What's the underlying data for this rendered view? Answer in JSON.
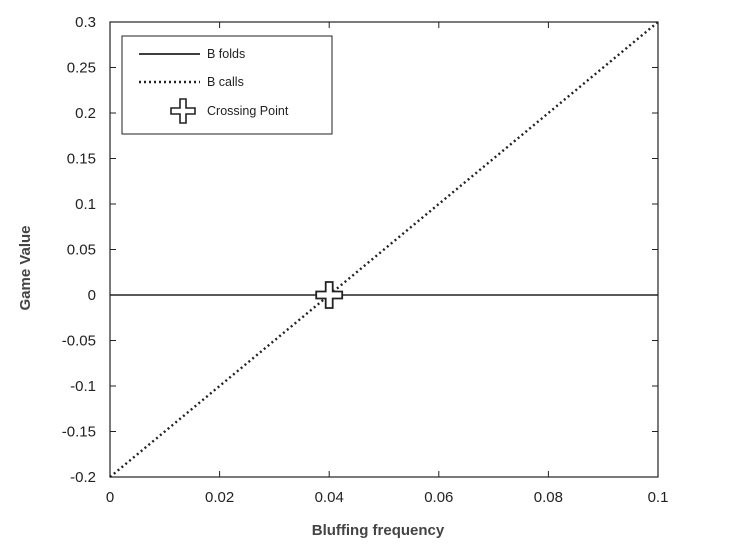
{
  "chart_data": {
    "type": "line",
    "title": "",
    "xlabel": "Bluffing frequency",
    "ylabel": "Game Value",
    "xlim": [
      0,
      0.1
    ],
    "ylim": [
      -0.2,
      0.3
    ],
    "x_ticks": [
      "0",
      "0.02",
      "0.04",
      "0.06",
      "0.08",
      "0.1"
    ],
    "y_ticks": [
      "0.3",
      "0.25",
      "0.2",
      "0.15",
      "0.1",
      "0.05",
      "0",
      "-0.05",
      "-0.1",
      "-0.15",
      "-0.2"
    ],
    "grid": false,
    "legend_position": "top-left",
    "series": [
      {
        "name": "B folds",
        "style": "solid",
        "color": "#222222",
        "x": [
          0,
          0.1
        ],
        "y": [
          0,
          0
        ]
      },
      {
        "name": "B calls",
        "style": "dotted",
        "color": "#222222",
        "x": [
          0,
          0.1
        ],
        "y": [
          -0.2,
          0.3
        ]
      }
    ],
    "markers": [
      {
        "name": "Crossing Point",
        "x": 0.04,
        "y": 0,
        "icon": "cross-star-icon"
      }
    ]
  }
}
